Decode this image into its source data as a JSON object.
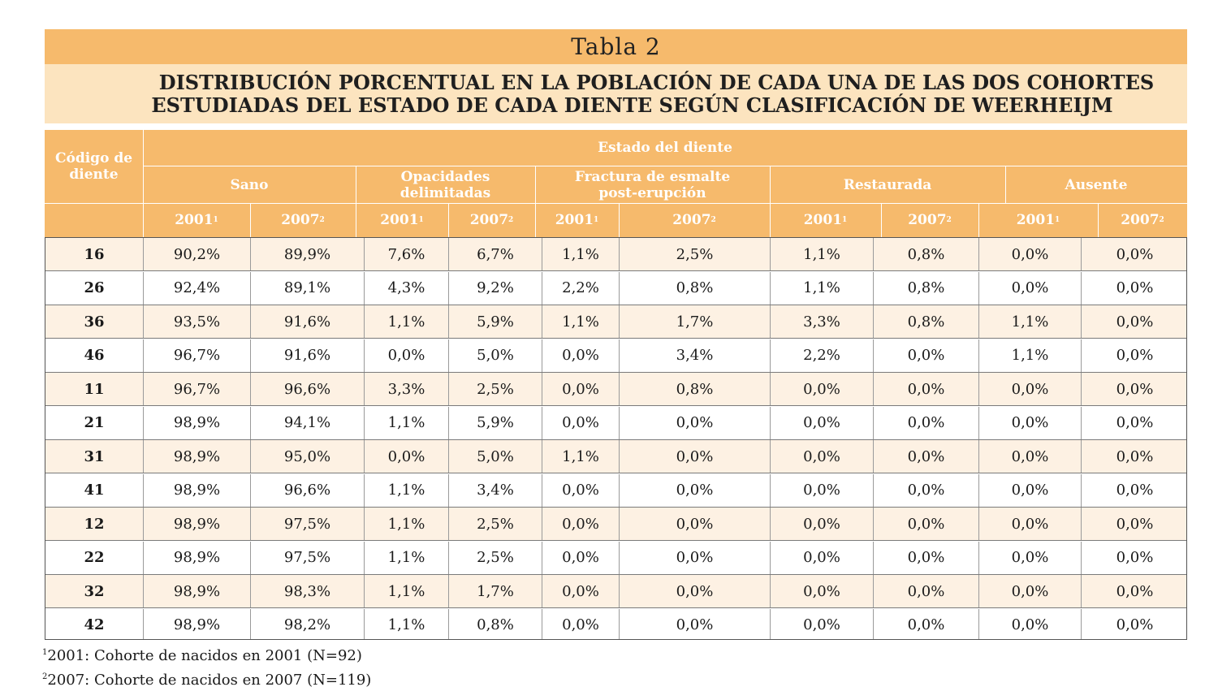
{
  "table_label": "Tabla 2",
  "title_lines": [
    "DISTRIBUCIÓN PORCENTUAL EN LA POBLACIÓN DE CADA UNA DE LAS DOS COHORTES",
    "ESTUDIADAS DEL ESTADO DE CADA DIENTE SEGÚN CLASIFICACIÓN DE WEERHEIJM"
  ],
  "header": {
    "code_col": "Código de diente",
    "group": "Estado del diente",
    "categories": [
      "Sano",
      "Opacidades delimitadas",
      "Fractura de esmalte post-erupción",
      "Restaurada",
      "Ausente"
    ],
    "years": [
      {
        "year": "2001",
        "sup": "1"
      },
      {
        "year": "2007",
        "sup": "2"
      }
    ]
  },
  "rows": [
    {
      "code": "16",
      "values": [
        "90,2%",
        "89,9%",
        "7,6%",
        "6,7%",
        "1,1%",
        "2,5%",
        "1,1%",
        "0,8%",
        "0,0%",
        "0,0%"
      ]
    },
    {
      "code": "26",
      "values": [
        "92,4%",
        "89,1%",
        "4,3%",
        "9,2%",
        "2,2%",
        "0,8%",
        "1,1%",
        "0,8%",
        "0,0%",
        "0,0%"
      ]
    },
    {
      "code": "36",
      "values": [
        "93,5%",
        "91,6%",
        "1,1%",
        "5,9%",
        "1,1%",
        "1,7%",
        "3,3%",
        "0,8%",
        "1,1%",
        "0,0%"
      ]
    },
    {
      "code": "46",
      "values": [
        "96,7%",
        "91,6%",
        "0,0%",
        "5,0%",
        "0,0%",
        "3,4%",
        "2,2%",
        "0,0%",
        "1,1%",
        "0,0%"
      ]
    },
    {
      "code": "11",
      "values": [
        "96,7%",
        "96,6%",
        "3,3%",
        "2,5%",
        "0,0%",
        "0,8%",
        "0,0%",
        "0,0%",
        "0,0%",
        "0,0%"
      ]
    },
    {
      "code": "21",
      "values": [
        "98,9%",
        "94,1%",
        "1,1%",
        "5,9%",
        "0,0%",
        "0,0%",
        "0,0%",
        "0,0%",
        "0,0%",
        "0,0%"
      ]
    },
    {
      "code": "31",
      "values": [
        "98,9%",
        "95,0%",
        "0,0%",
        "5,0%",
        "1,1%",
        "0,0%",
        "0,0%",
        "0,0%",
        "0,0%",
        "0,0%"
      ]
    },
    {
      "code": "41",
      "values": [
        "98,9%",
        "96,6%",
        "1,1%",
        "3,4%",
        "0,0%",
        "0,0%",
        "0,0%",
        "0,0%",
        "0,0%",
        "0,0%"
      ]
    },
    {
      "code": "12",
      "values": [
        "98,9%",
        "97,5%",
        "1,1%",
        "2,5%",
        "0,0%",
        "0,0%",
        "0,0%",
        "0,0%",
        "0,0%",
        "0,0%"
      ]
    },
    {
      "code": "22",
      "values": [
        "98,9%",
        "97,5%",
        "1,1%",
        "2,5%",
        "0,0%",
        "0,0%",
        "0,0%",
        "0,0%",
        "0,0%",
        "0,0%"
      ]
    },
    {
      "code": "32",
      "values": [
        "98,9%",
        "98,3%",
        "1,1%",
        "1,7%",
        "0,0%",
        "0,0%",
        "0,0%",
        "0,0%",
        "0,0%",
        "0,0%"
      ]
    },
    {
      "code": "42",
      "values": [
        "98,9%",
        "98,2%",
        "1,1%",
        "0,8%",
        "0,0%",
        "0,0%",
        "0,0%",
        "0,0%",
        "0,0%",
        "0,0%"
      ]
    }
  ],
  "footnotes": [
    {
      "mark": "1",
      "text": "2001: Cohorte de nacidos en 2001 (N=92)"
    },
    {
      "mark": "2",
      "text": "2007: Cohorte de nacidos en 2007 (N=119)"
    }
  ],
  "colors": {
    "header_orange": "#f6ba6c",
    "subtitle_band": "#fce4bf",
    "row_alt": "#fdf1e3"
  }
}
